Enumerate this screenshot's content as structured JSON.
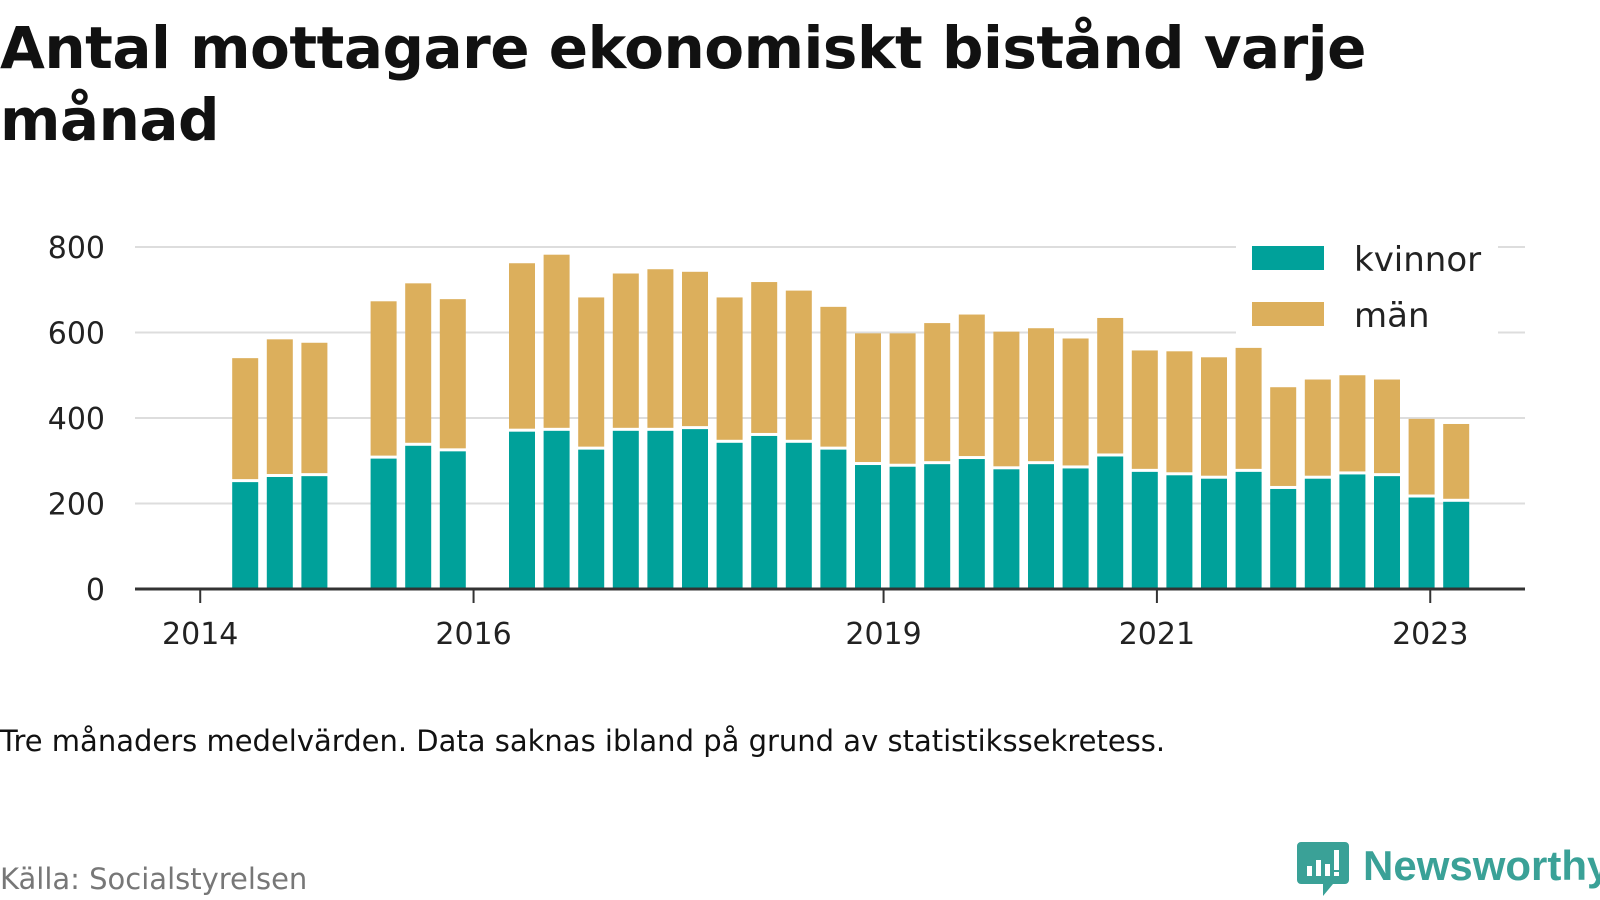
{
  "title": "Antal mottagare ekonomiskt bistånd varje månad",
  "note": "Tre månaders medelvärden. Data saknas ibland på grund av statistikssekretess.",
  "source": "Källa: Socialstyrelsen",
  "brand": "Newsworthy",
  "colors": {
    "kvinnor": "#00a19a",
    "man": "#dcaf5c",
    "grid": "#dddddd",
    "axis": "#333333",
    "brand": "#3aa197"
  },
  "chart_data": {
    "type": "bar",
    "stacked": true,
    "x_ticks": [
      "2014",
      "2016",
      "2019",
      "2021",
      "2023"
    ],
    "y_ticks": [
      0,
      200,
      400,
      600,
      800
    ],
    "ylim": [
      0,
      800
    ],
    "grid": true,
    "legend_position": "top-right",
    "series": [
      {
        "name": "kvinnor",
        "values": [
          null,
          null,
          250,
          262,
          264,
          null,
          305,
          335,
          322,
          null,
          368,
          370,
          326,
          370,
          370,
          374,
          342,
          358,
          342,
          326,
          290,
          286,
          292,
          304,
          280,
          292,
          282,
          310,
          274,
          266,
          258,
          274,
          234,
          258,
          268,
          264,
          214,
          204
        ]
      },
      {
        "name": "män",
        "values": [
          null,
          null,
          290,
          322,
          312,
          null,
          368,
          380,
          356,
          null,
          394,
          412,
          356,
          368,
          378,
          368,
          340,
          360,
          356,
          334,
          308,
          312,
          330,
          338,
          322,
          318,
          304,
          324,
          284,
          290,
          284,
          290,
          238,
          232,
          232,
          226,
          184,
          182
        ]
      }
    ]
  }
}
